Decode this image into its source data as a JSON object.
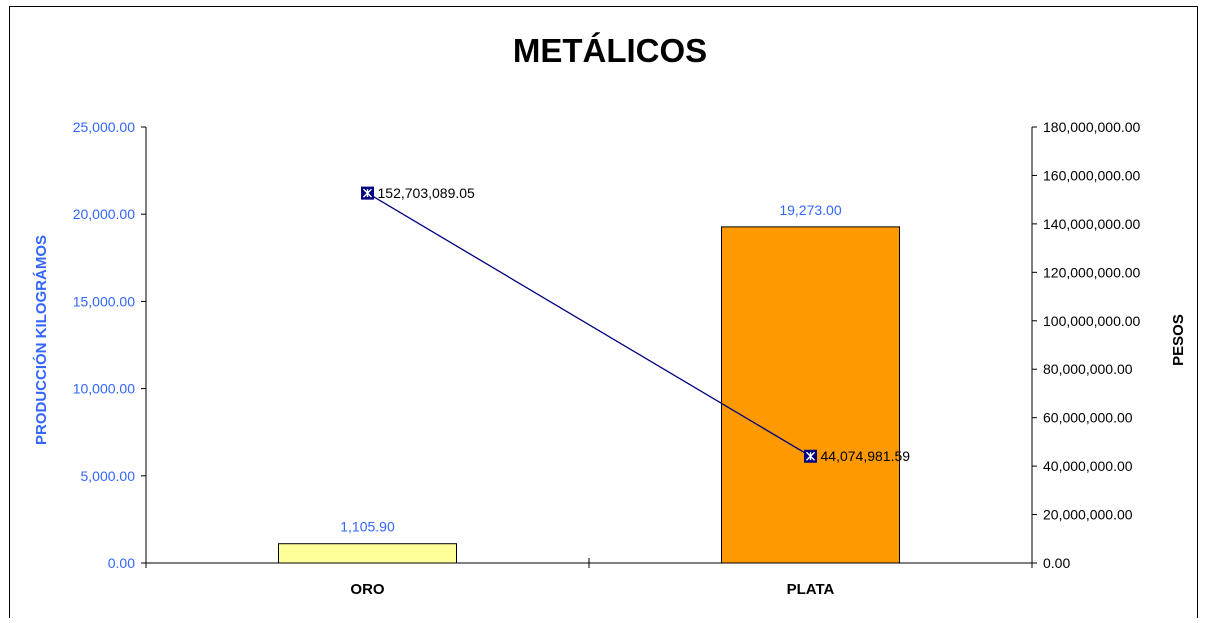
{
  "chart_data": {
    "type": "bar",
    "title": "METÁLICOS",
    "categories": [
      "ORO",
      "PLATA"
    ],
    "series": [
      {
        "name": "PRODUCCIÓN KILOGRÁMOS",
        "type": "bar",
        "axis": "left",
        "values": [
          1105.9,
          19273.0
        ],
        "value_labels": [
          "1,105.90",
          "19,273.00"
        ],
        "colors": [
          "#FFFF99",
          "#FF9900"
        ]
      },
      {
        "name": "PESOS",
        "type": "line",
        "axis": "right",
        "values": [
          152703089.05,
          44074981.59
        ],
        "value_labels": [
          "152,703,089.05",
          "44,074,981.59"
        ],
        "color": "#000080"
      }
    ],
    "y_left": {
      "label": "PRODUCCIÓN KILOGRÁMOS",
      "min": 0,
      "max": 25000,
      "ticks": [
        0,
        5000,
        10000,
        15000,
        20000,
        25000
      ],
      "tick_labels": [
        "0.00",
        "5,000.00",
        "10,000.00",
        "15,000.00",
        "20,000.00",
        "25,000.00"
      ],
      "color": "#3366FF"
    },
    "y_right": {
      "label": "PESOS",
      "min": 0,
      "max": 180000000,
      "ticks": [
        0,
        20000000,
        40000000,
        60000000,
        80000000,
        100000000,
        120000000,
        140000000,
        160000000,
        180000000
      ],
      "tick_labels": [
        "0.00",
        "20,000,000.00",
        "40,000,000.00",
        "60,000,000.00",
        "80,000,000.00",
        "100,000,000.00",
        "120,000,000.00",
        "140,000,000.00",
        "160,000,000.00",
        "180,000,000.00"
      ],
      "color": "#000000"
    },
    "grid": false,
    "legend": "none"
  }
}
